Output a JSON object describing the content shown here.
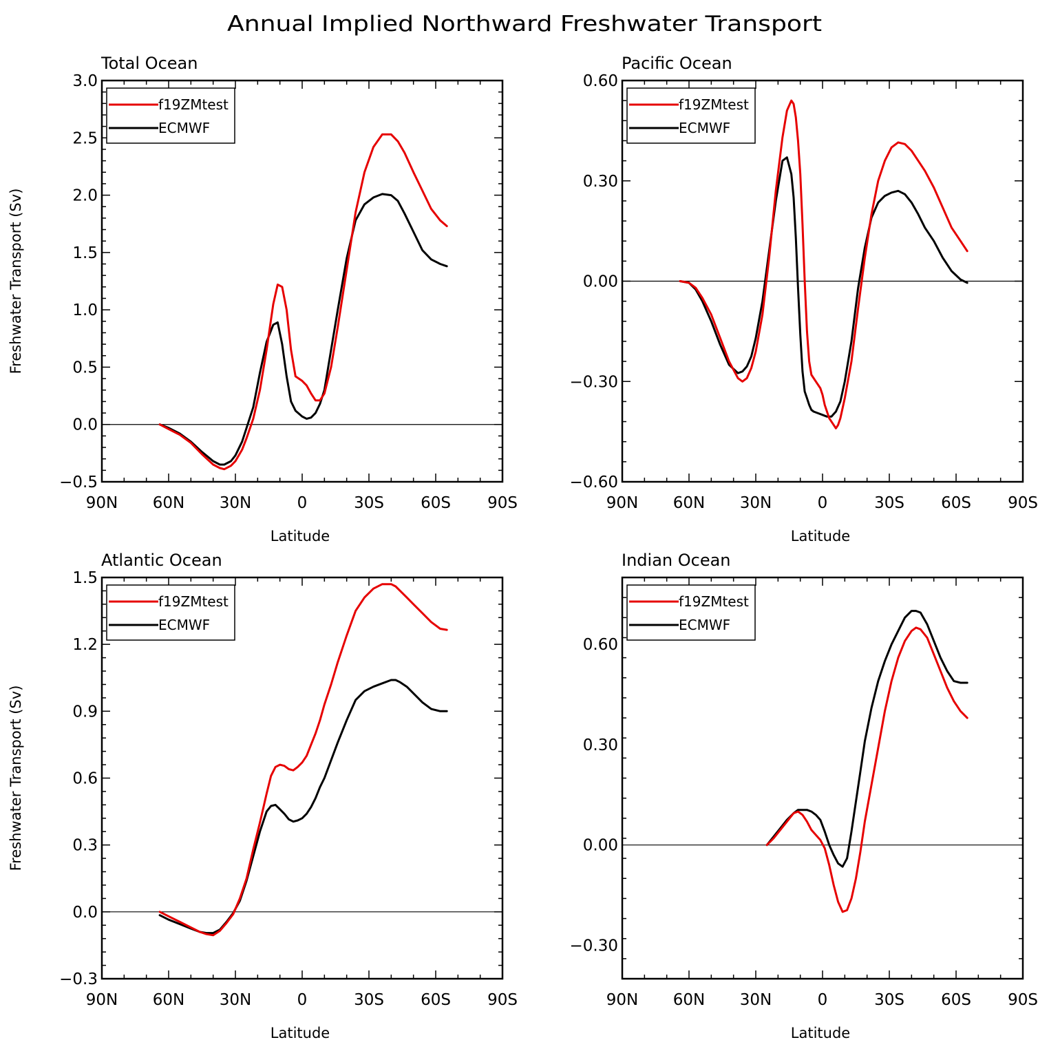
{
  "figure_title": "Annual Implied Northward Freshwater Transport",
  "colors": {
    "f19ZMtest": "#e60000",
    "ECMWF": "#000000"
  },
  "chart_data": [
    {
      "type": "line",
      "title": "Total Ocean",
      "xlabel": "Latitude",
      "ylabel": "Freshwater Transport (Sv)",
      "xlim": [
        -90,
        90
      ],
      "ylim": [
        -0.5,
        3.0
      ],
      "xticks": [
        "90N",
        "60N",
        "30N",
        "0",
        "30S",
        "60S",
        "90S"
      ],
      "yticks": [
        "−0.5",
        "0.0",
        "0.5",
        "1.0",
        "1.5",
        "2.0",
        "2.5",
        "3.0"
      ],
      "legend": [
        "f19ZMtest",
        "ECMWF"
      ],
      "series": [
        {
          "name": "f19ZMtest",
          "x": [
            -64,
            -60,
            -55,
            -50,
            -45,
            -40,
            -37,
            -35,
            -32,
            -30,
            -27,
            -25,
            -22,
            -19,
            -16,
            -13,
            -11,
            -9,
            -7,
            -5,
            -3,
            0,
            2,
            4,
            6,
            8,
            10,
            13,
            16,
            20,
            24,
            28,
            32,
            36,
            40,
            43,
            46,
            50,
            54,
            58,
            62,
            65
          ],
          "y": [
            0,
            -0.04,
            -0.09,
            -0.16,
            -0.26,
            -0.35,
            -0.38,
            -0.39,
            -0.36,
            -0.32,
            -0.22,
            -0.12,
            0.05,
            0.3,
            0.65,
            1.05,
            1.22,
            1.2,
            1.0,
            0.65,
            0.42,
            0.38,
            0.34,
            0.27,
            0.21,
            0.21,
            0.27,
            0.5,
            0.85,
            1.35,
            1.85,
            2.2,
            2.42,
            2.53,
            2.53,
            2.47,
            2.37,
            2.2,
            2.04,
            1.88,
            1.78,
            1.73
          ]
        },
        {
          "name": "ECMWF",
          "x": [
            -64,
            -60,
            -55,
            -50,
            -45,
            -40,
            -37,
            -35,
            -32,
            -30,
            -27,
            -25,
            -22,
            -19,
            -16,
            -13,
            -11,
            -9,
            -7,
            -5,
            -3,
            0,
            2,
            4,
            6,
            8,
            10,
            13,
            16,
            20,
            24,
            28,
            32,
            36,
            40,
            43,
            46,
            50,
            54,
            58,
            62,
            65
          ],
          "y": [
            0,
            -0.03,
            -0.08,
            -0.15,
            -0.24,
            -0.32,
            -0.35,
            -0.35,
            -0.32,
            -0.27,
            -0.15,
            -0.03,
            0.15,
            0.45,
            0.72,
            0.87,
            0.89,
            0.7,
            0.42,
            0.2,
            0.12,
            0.07,
            0.05,
            0.06,
            0.1,
            0.18,
            0.3,
            0.65,
            1.0,
            1.45,
            1.78,
            1.92,
            1.98,
            2.01,
            2.0,
            1.95,
            1.84,
            1.68,
            1.52,
            1.44,
            1.4,
            1.38
          ]
        }
      ]
    },
    {
      "type": "line",
      "title": "Pacific Ocean",
      "xlabel": "Latitude",
      "ylabel": "",
      "xlim": [
        -90,
        90
      ],
      "ylim": [
        -0.6,
        0.6
      ],
      "xticks": [
        "90N",
        "60N",
        "30N",
        "0",
        "30S",
        "60S",
        "90S"
      ],
      "yticks": [
        "−0.60",
        "−0.30",
        "0.00",
        "0.30",
        "0.60"
      ],
      "legend": [
        "f19ZMtest",
        "ECMWF"
      ],
      "series": [
        {
          "name": "f19ZMtest",
          "x": [
            -64,
            -60,
            -57,
            -54,
            -50,
            -46,
            -42,
            -38,
            -36,
            -34,
            -32,
            -30,
            -27,
            -24,
            -21,
            -18,
            -16,
            -14,
            -13,
            -12,
            -11,
            -10,
            -9,
            -8,
            -7,
            -6,
            -5,
            -3,
            -1,
            0,
            1,
            3,
            5,
            6,
            7,
            8,
            10,
            13,
            16,
            19,
            22,
            25,
            28,
            31,
            34,
            37,
            40,
            43,
            46,
            50,
            54,
            58,
            62,
            65
          ],
          "y": [
            0,
            -0.005,
            -0.02,
            -0.05,
            -0.1,
            -0.17,
            -0.24,
            -0.29,
            -0.3,
            -0.29,
            -0.26,
            -0.21,
            -0.1,
            0.07,
            0.27,
            0.43,
            0.51,
            0.54,
            0.53,
            0.49,
            0.42,
            0.32,
            0.17,
            0.0,
            -0.15,
            -0.24,
            -0.28,
            -0.3,
            -0.32,
            -0.34,
            -0.37,
            -0.41,
            -0.43,
            -0.44,
            -0.43,
            -0.41,
            -0.35,
            -0.24,
            -0.08,
            0.07,
            0.2,
            0.3,
            0.36,
            0.4,
            0.415,
            0.41,
            0.39,
            0.36,
            0.33,
            0.28,
            0.22,
            0.16,
            0.12,
            0.09
          ]
        },
        {
          "name": "ECMWF",
          "x": [
            -64,
            -60,
            -57,
            -54,
            -50,
            -46,
            -42,
            -38,
            -36,
            -34,
            -32,
            -30,
            -27,
            -24,
            -21,
            -18,
            -16,
            -14,
            -13,
            -12,
            -11,
            -10,
            -9,
            -8,
            -7,
            -6,
            -5,
            -4,
            -2,
            0,
            2,
            4,
            6,
            8,
            10,
            13,
            16,
            19,
            22,
            25,
            28,
            31,
            34,
            37,
            40,
            43,
            46,
            50,
            54,
            58,
            62,
            65
          ],
          "y": [
            0,
            -0.005,
            -0.025,
            -0.06,
            -0.12,
            -0.19,
            -0.25,
            -0.275,
            -0.27,
            -0.255,
            -0.225,
            -0.17,
            -0.06,
            0.09,
            0.24,
            0.36,
            0.37,
            0.32,
            0.25,
            0.13,
            -0.02,
            -0.16,
            -0.27,
            -0.33,
            -0.35,
            -0.37,
            -0.385,
            -0.39,
            -0.395,
            -0.4,
            -0.405,
            -0.405,
            -0.39,
            -0.36,
            -0.3,
            -0.18,
            -0.02,
            0.1,
            0.19,
            0.235,
            0.255,
            0.265,
            0.27,
            0.26,
            0.235,
            0.2,
            0.16,
            0.12,
            0.07,
            0.03,
            0.005,
            -0.005
          ]
        }
      ]
    },
    {
      "type": "line",
      "title": "Atlantic Ocean",
      "xlabel": "Latitude",
      "ylabel": "Freshwater Transport (Sv)",
      "xlim": [
        -90,
        90
      ],
      "ylim": [
        -0.3,
        1.5
      ],
      "xticks": [
        "90N",
        "60N",
        "30N",
        "0",
        "30S",
        "60S",
        "90S"
      ],
      "yticks": [
        "−0.3",
        "0.0",
        "0.3",
        "0.6",
        "0.9",
        "1.2",
        "1.5"
      ],
      "legend": [
        "f19ZMtest",
        "ECMWF"
      ],
      "series": [
        {
          "name": "f19ZMtest",
          "x": [
            -64,
            -60,
            -55,
            -50,
            -46,
            -43,
            -40,
            -37,
            -34,
            -31,
            -28,
            -25,
            -22,
            -19,
            -16,
            -14,
            -12,
            -10,
            -8,
            -6,
            -4,
            -2,
            0,
            2,
            4,
            6,
            8,
            10,
            13,
            16,
            20,
            24,
            28,
            32,
            36,
            40,
            42,
            44,
            47,
            50,
            54,
            58,
            62,
            65
          ],
          "y": [
            0,
            -0.02,
            -0.045,
            -0.07,
            -0.09,
            -0.1,
            -0.105,
            -0.085,
            -0.05,
            -0.01,
            0.06,
            0.15,
            0.28,
            0.4,
            0.53,
            0.61,
            0.65,
            0.66,
            0.655,
            0.64,
            0.635,
            0.65,
            0.67,
            0.7,
            0.75,
            0.8,
            0.86,
            0.93,
            1.02,
            1.12,
            1.24,
            1.35,
            1.41,
            1.45,
            1.47,
            1.47,
            1.46,
            1.44,
            1.41,
            1.38,
            1.34,
            1.3,
            1.27,
            1.265
          ]
        },
        {
          "name": "ECMWF",
          "x": [
            -64,
            -60,
            -55,
            -50,
            -46,
            -43,
            -40,
            -37,
            -34,
            -31,
            -28,
            -25,
            -22,
            -19,
            -16,
            -14,
            -12,
            -10,
            -8,
            -6,
            -4,
            -2,
            0,
            2,
            4,
            6,
            8,
            10,
            13,
            16,
            20,
            24,
            28,
            32,
            36,
            40,
            42,
            44,
            47,
            50,
            54,
            58,
            62,
            65
          ],
          "y": [
            -0.015,
            -0.035,
            -0.055,
            -0.075,
            -0.09,
            -0.095,
            -0.095,
            -0.08,
            -0.045,
            -0.005,
            0.05,
            0.14,
            0.25,
            0.36,
            0.45,
            0.475,
            0.48,
            0.46,
            0.44,
            0.415,
            0.405,
            0.41,
            0.42,
            0.44,
            0.47,
            0.51,
            0.56,
            0.6,
            0.68,
            0.76,
            0.86,
            0.95,
            0.99,
            1.01,
            1.025,
            1.04,
            1.04,
            1.03,
            1.01,
            0.98,
            0.94,
            0.91,
            0.9,
            0.9
          ]
        }
      ]
    },
    {
      "type": "line",
      "title": "Indian Ocean",
      "xlabel": "Latitude",
      "ylabel": "",
      "xlim": [
        -90,
        90
      ],
      "ylim": [
        -0.4,
        0.8
      ],
      "xticks": [
        "90N",
        "60N",
        "30N",
        "0",
        "30S",
        "60S",
        "90S"
      ],
      "yticks": [
        "−0.30",
        "0.00",
        "0.30",
        "0.60"
      ],
      "legend": [
        "f19ZMtest",
        "ECMWF"
      ],
      "series": [
        {
          "name": "f19ZMtest",
          "x": [
            -25,
            -22,
            -19,
            -16,
            -13,
            -11,
            -9,
            -7,
            -5,
            -3,
            -1,
            1,
            3,
            5,
            7,
            9,
            11,
            13,
            15,
            17,
            19,
            22,
            25,
            28,
            31,
            34,
            37,
            40,
            42,
            44,
            47,
            50,
            53,
            56,
            59,
            62,
            65
          ],
          "y": [
            0,
            0.02,
            0.045,
            0.07,
            0.095,
            0.1,
            0.09,
            0.07,
            0.045,
            0.03,
            0.015,
            -0.01,
            -0.06,
            -0.12,
            -0.17,
            -0.2,
            -0.195,
            -0.16,
            -0.1,
            -0.02,
            0.07,
            0.18,
            0.29,
            0.4,
            0.49,
            0.56,
            0.61,
            0.64,
            0.65,
            0.645,
            0.62,
            0.57,
            0.52,
            0.47,
            0.43,
            0.4,
            0.38
          ]
        },
        {
          "name": "ECMWF",
          "x": [
            -25,
            -22,
            -19,
            -16,
            -13,
            -11,
            -9,
            -7,
            -5,
            -3,
            -1,
            1,
            3,
            5,
            7,
            9,
            11,
            13,
            15,
            17,
            19,
            22,
            25,
            28,
            31,
            34,
            37,
            40,
            42,
            44,
            47,
            50,
            53,
            56,
            59,
            62,
            65
          ],
          "y": [
            0,
            0.025,
            0.05,
            0.075,
            0.095,
            0.105,
            0.105,
            0.105,
            0.1,
            0.09,
            0.075,
            0.04,
            0.0,
            -0.03,
            -0.055,
            -0.065,
            -0.04,
            0.04,
            0.13,
            0.22,
            0.31,
            0.41,
            0.49,
            0.55,
            0.6,
            0.64,
            0.68,
            0.7,
            0.7,
            0.695,
            0.66,
            0.61,
            0.56,
            0.52,
            0.49,
            0.485,
            0.485
          ]
        }
      ]
    }
  ]
}
